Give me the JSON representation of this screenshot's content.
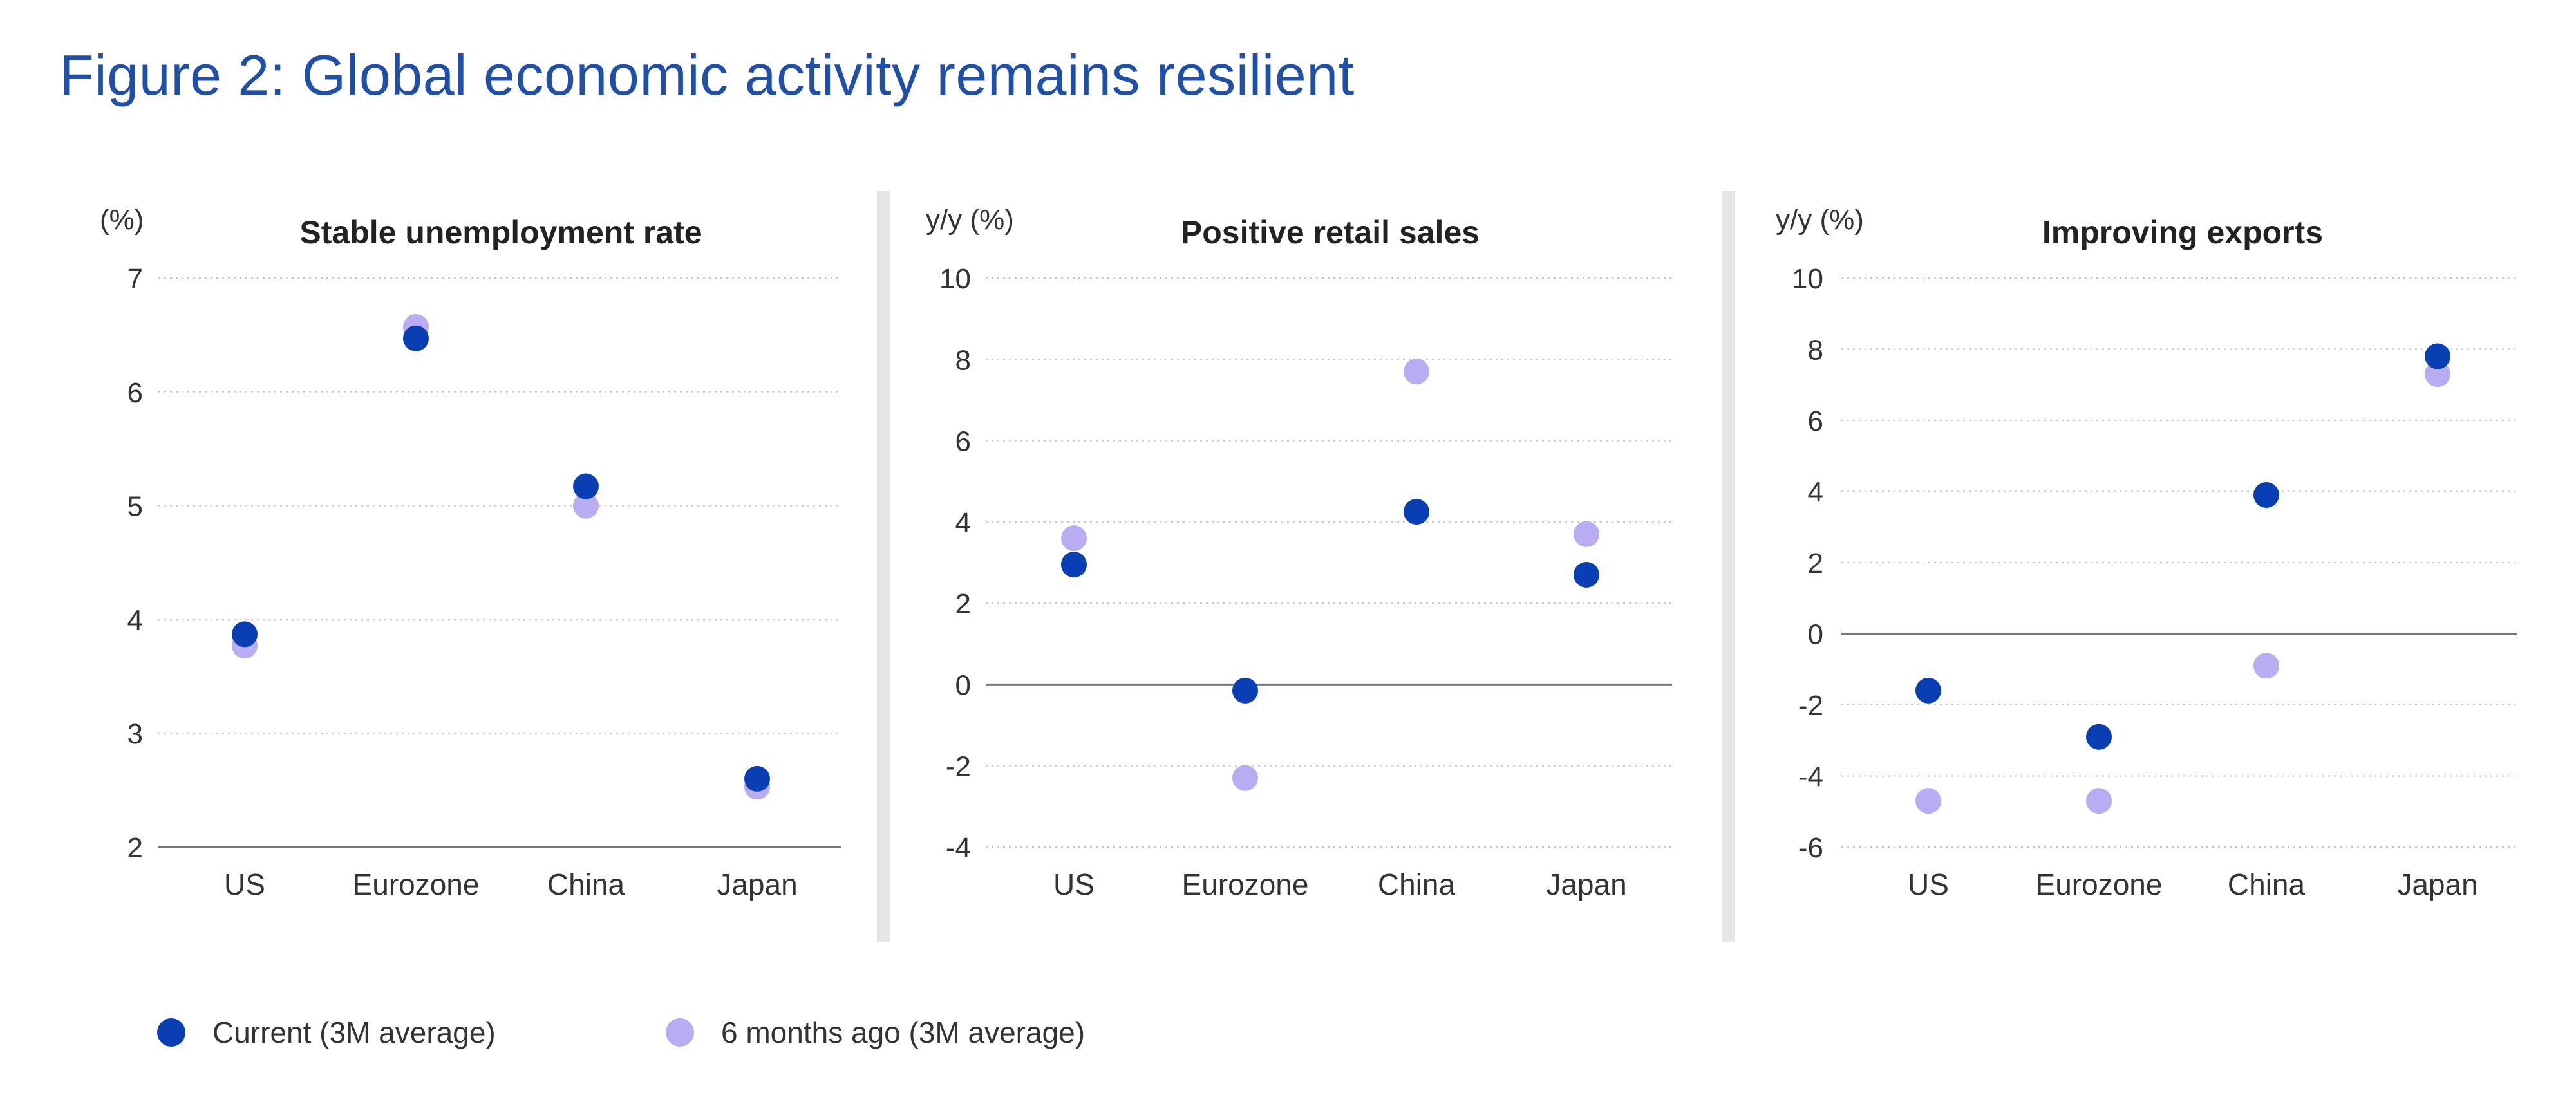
{
  "figure_title": "Figure 2: Global economic activity remains resilient",
  "colors": {
    "title": "#1f4fa8",
    "current": "#0a3fb3",
    "previous": "#b9acf2",
    "grid": "#c8c8c8",
    "axis": "#777777",
    "text": "#333333"
  },
  "legend": {
    "current_label": "Current (3M average)",
    "previous_label": "6 months ago (3M average)"
  },
  "chart_data": [
    {
      "type": "scatter",
      "title": "Stable unemployment rate",
      "ylabel": "(%)",
      "categories": [
        "US",
        "Eurozone",
        "China",
        "Japan"
      ],
      "ylim": [
        2,
        7
      ],
      "yticks": [
        2,
        3,
        4,
        5,
        6,
        7
      ],
      "baseline": 2,
      "grid": true,
      "series": [
        {
          "name": "Current (3M average)",
          "values": [
            3.87,
            6.47,
            5.17,
            2.6
          ]
        },
        {
          "name": "6 months ago (3M average)",
          "values": [
            3.77,
            6.57,
            5.0,
            2.53
          ]
        }
      ]
    },
    {
      "type": "scatter",
      "title": "Positive retail sales",
      "ylabel": "y/y (%)",
      "categories": [
        "US",
        "Eurozone",
        "China",
        "Japan"
      ],
      "ylim": [
        -4,
        10
      ],
      "yticks": [
        -4,
        -2,
        0,
        2,
        4,
        6,
        8,
        10
      ],
      "baseline": 0,
      "grid": true,
      "series": [
        {
          "name": "Current (3M average)",
          "values": [
            2.95,
            -0.15,
            4.25,
            2.7
          ]
        },
        {
          "name": "6 months ago (3M average)",
          "values": [
            3.6,
            -2.3,
            7.7,
            3.7
          ]
        }
      ]
    },
    {
      "type": "scatter",
      "title": "Improving exports",
      "ylabel": "y/y (%)",
      "categories": [
        "US",
        "Eurozone",
        "China",
        "Japan"
      ],
      "ylim": [
        -6,
        10
      ],
      "yticks": [
        -6,
        -4,
        -2,
        0,
        2,
        4,
        6,
        8,
        10
      ],
      "baseline": 0,
      "grid": true,
      "series": [
        {
          "name": "Current (3M average)",
          "values": [
            -1.6,
            -2.9,
            3.9,
            7.8
          ]
        },
        {
          "name": "6 months ago (3M average)",
          "values": [
            -4.7,
            -4.7,
            -0.9,
            7.3
          ]
        }
      ]
    }
  ]
}
